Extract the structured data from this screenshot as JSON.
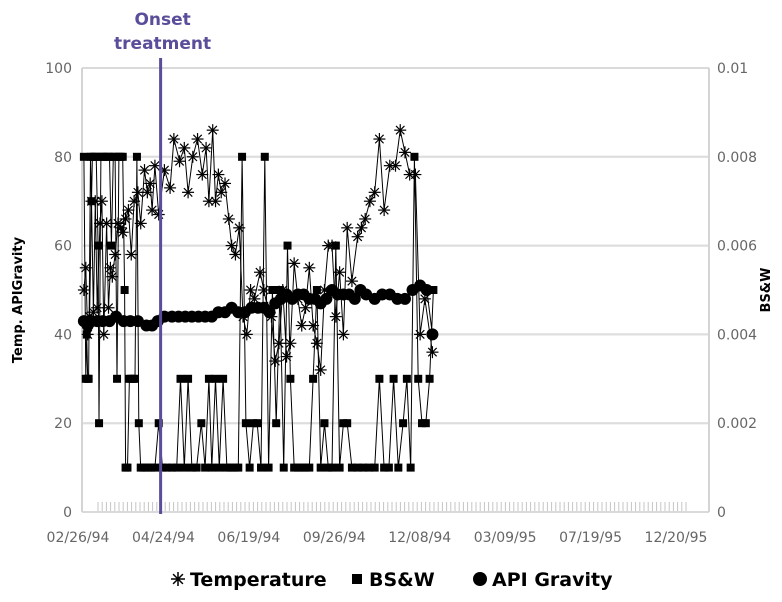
{
  "chart_data": {
    "type": "line",
    "title": "",
    "ylabel": "Temp. APIGravity",
    "y2label": "BS&W",
    "xlim": [
      "1994-02-26",
      "1995-12-20"
    ],
    "ylim": [
      0,
      100
    ],
    "y2lim": [
      0,
      0.01
    ],
    "yticks": [
      0,
      20,
      40,
      60,
      80,
      100
    ],
    "y2ticks": [
      "0",
      "0.002",
      "0.004",
      "0.006",
      "0.008",
      "0.01"
    ],
    "y2tick_values": [
      0,
      0.002,
      0.004,
      0.006,
      0.008,
      0.01
    ],
    "xticks": [
      "02/26/94",
      "04/24/94",
      "06/19/94",
      "09/26/94",
      "12/08/94",
      "03/09/95",
      "07/19/95",
      "12/20/95"
    ],
    "grid": true,
    "legend_position": "bottom",
    "annotation": {
      "text_line1": "Onset",
      "text_line2": "treatment",
      "x": "1994-05-20"
    },
    "series": [
      {
        "name": "Temperature",
        "axis": "left",
        "marker": "asterisk",
        "points": [
          [
            "1994-02-28",
            50
          ],
          [
            "1994-03-02",
            55
          ],
          [
            "1994-03-04",
            40
          ],
          [
            "1994-03-06",
            44
          ],
          [
            "1994-03-08",
            70
          ],
          [
            "1994-03-10",
            45
          ],
          [
            "1994-03-12",
            70
          ],
          [
            "1994-03-14",
            46
          ],
          [
            "1994-03-17",
            65
          ],
          [
            "1994-03-19",
            70
          ],
          [
            "1994-03-21",
            40
          ],
          [
            "1994-03-24",
            65
          ],
          [
            "1994-03-26",
            46
          ],
          [
            "1994-03-28",
            55
          ],
          [
            "1994-03-30",
            53
          ],
          [
            "1994-04-02",
            58
          ],
          [
            "1994-04-05",
            65
          ],
          [
            "1994-04-08",
            64
          ],
          [
            "1994-04-10",
            63
          ],
          [
            "1994-04-13",
            66
          ],
          [
            "1994-04-16",
            68
          ],
          [
            "1994-04-19",
            58
          ],
          [
            "1994-04-22",
            70
          ],
          [
            "1994-04-26",
            72
          ],
          [
            "1994-04-29",
            65
          ],
          [
            "1994-05-03",
            77
          ],
          [
            "1994-05-06",
            72
          ],
          [
            "1994-05-09",
            74
          ],
          [
            "1994-05-11",
            68
          ],
          [
            "1994-05-14",
            78
          ],
          [
            "1994-05-18",
            67
          ],
          [
            "1994-05-24",
            77
          ],
          [
            "1994-05-30",
            73
          ],
          [
            "1994-06-03",
            84
          ],
          [
            "1994-06-09",
            79
          ],
          [
            "1994-06-14",
            82
          ],
          [
            "1994-06-18",
            72
          ],
          [
            "1994-06-23",
            80
          ],
          [
            "1994-06-28",
            84
          ],
          [
            "1994-07-03",
            76
          ],
          [
            "1994-07-07",
            82
          ],
          [
            "1994-07-10",
            70
          ],
          [
            "1994-07-14",
            86
          ],
          [
            "1994-07-17",
            70
          ],
          [
            "1994-07-20",
            76
          ],
          [
            "1994-07-23",
            72
          ],
          [
            "1994-07-27",
            74
          ],
          [
            "1994-07-31",
            66
          ],
          [
            "1994-08-03",
            60
          ],
          [
            "1994-08-07",
            58
          ],
          [
            "1994-08-11",
            64
          ],
          [
            "1994-08-15",
            44
          ],
          [
            "1994-08-19",
            40
          ],
          [
            "1994-08-23",
            50
          ],
          [
            "1994-08-27",
            48
          ],
          [
            "1994-09-02",
            54
          ],
          [
            "1994-09-06",
            50
          ],
          [
            "1994-09-10",
            46
          ],
          [
            "1994-09-14",
            44
          ],
          [
            "1994-09-18",
            34
          ],
          [
            "1994-09-22",
            38
          ],
          [
            "1994-09-26",
            50
          ],
          [
            "1994-09-30",
            35
          ],
          [
            "1994-10-04",
            38
          ],
          [
            "1994-10-08",
            56
          ],
          [
            "1994-10-12",
            48
          ],
          [
            "1994-10-16",
            42
          ],
          [
            "1994-10-20",
            46
          ],
          [
            "1994-10-24",
            55
          ],
          [
            "1994-10-28",
            42
          ],
          [
            "1994-11-01",
            38
          ],
          [
            "1994-11-05",
            32
          ],
          [
            "1994-11-09",
            50
          ],
          [
            "1994-11-13",
            60
          ],
          [
            "1994-11-17",
            60
          ],
          [
            "1994-11-21",
            44
          ],
          [
            "1994-11-25",
            54
          ],
          [
            "1994-11-29",
            40
          ],
          [
            "1994-12-03",
            64
          ],
          [
            "1994-12-08",
            52
          ],
          [
            "1994-12-14",
            62
          ],
          [
            "1994-12-18",
            64
          ],
          [
            "1994-12-22",
            66
          ],
          [
            "1994-12-27",
            70
          ],
          [
            "1995-01-01",
            72
          ],
          [
            "1995-01-06",
            84
          ],
          [
            "1995-01-11",
            68
          ],
          [
            "1995-01-17",
            78
          ],
          [
            "1995-01-23",
            78
          ],
          [
            "1995-01-28",
            86
          ],
          [
            "1995-02-02",
            81
          ],
          [
            "1995-02-07",
            76
          ],
          [
            "1995-02-13",
            76
          ],
          [
            "1995-02-18",
            40
          ],
          [
            "1995-02-23",
            48
          ],
          [
            "1995-03-03",
            36
          ]
        ]
      },
      {
        "name": "BS&W",
        "axis": "right",
        "marker": "square",
        "points": [
          [
            "1994-02-28",
            0.008
          ],
          [
            "1994-03-02",
            0.003
          ],
          [
            "1994-03-03",
            0.004
          ],
          [
            "1994-03-04",
            0.003
          ],
          [
            "1994-03-05",
            0.003
          ],
          [
            "1994-03-07",
            0.008
          ],
          [
            "1994-03-08",
            0.007
          ],
          [
            "1994-03-09",
            0.008
          ],
          [
            "1994-03-11",
            0.008
          ],
          [
            "1994-03-13",
            0.008
          ],
          [
            "1994-03-15",
            0.006
          ],
          [
            "1994-03-16",
            0.002
          ],
          [
            "1994-03-18",
            0.008
          ],
          [
            "1994-03-20",
            0.008
          ],
          [
            "1994-03-22",
            0.008
          ],
          [
            "1994-03-25",
            0.008
          ],
          [
            "1994-03-27",
            0.008
          ],
          [
            "1994-03-29",
            0.006
          ],
          [
            "1994-03-31",
            0.008
          ],
          [
            "1994-04-02",
            0.008
          ],
          [
            "1994-04-04",
            0.003
          ],
          [
            "1994-04-06",
            0.008
          ],
          [
            "1994-04-08",
            0.008
          ],
          [
            "1994-04-10",
            0.008
          ],
          [
            "1994-04-12",
            0.005
          ],
          [
            "1994-04-13",
            0.001
          ],
          [
            "1994-04-15",
            0.001
          ],
          [
            "1994-04-17",
            0.003
          ],
          [
            "1994-04-19",
            0.003
          ],
          [
            "1994-04-21",
            0.003
          ],
          [
            "1994-04-23",
            0.003
          ],
          [
            "1994-04-25",
            0.008
          ],
          [
            "1994-04-27",
            0.002
          ],
          [
            "1994-04-29",
            0.001
          ],
          [
            "1994-05-02",
            0.001
          ],
          [
            "1994-05-06",
            0.001
          ],
          [
            "1994-05-10",
            0.001
          ],
          [
            "1994-05-14",
            0.001
          ],
          [
            "1994-05-18",
            0.002
          ],
          [
            "1994-05-22",
            0.001
          ],
          [
            "1994-05-27",
            0.001
          ],
          [
            "1994-06-01",
            0.001
          ],
          [
            "1994-06-06",
            0.001
          ],
          [
            "1994-06-10",
            0.003
          ],
          [
            "1994-06-14",
            0.001
          ],
          [
            "1994-06-18",
            0.003
          ],
          [
            "1994-06-22",
            0.001
          ],
          [
            "1994-06-27",
            0.001
          ],
          [
            "1994-07-02",
            0.002
          ],
          [
            "1994-07-06",
            0.001
          ],
          [
            "1994-07-10",
            0.003
          ],
          [
            "1994-07-13",
            0.001
          ],
          [
            "1994-07-17",
            0.003
          ],
          [
            "1994-07-21",
            0.001
          ],
          [
            "1994-07-25",
            0.003
          ],
          [
            "1994-07-29",
            0.001
          ],
          [
            "1994-08-02",
            0.001
          ],
          [
            "1994-08-06",
            0.001
          ],
          [
            "1994-08-10",
            0.001
          ],
          [
            "1994-08-14",
            0.008
          ],
          [
            "1994-08-18",
            0.002
          ],
          [
            "1994-08-22",
            0.001
          ],
          [
            "1994-08-26",
            0.002
          ],
          [
            "1994-08-30",
            0.002
          ],
          [
            "1994-09-03",
            0.001
          ],
          [
            "1994-09-07",
            0.008
          ],
          [
            "1994-09-11",
            0.001
          ],
          [
            "1994-09-15",
            0.005
          ],
          [
            "1994-09-19",
            0.002
          ],
          [
            "1994-09-23",
            0.005
          ],
          [
            "1994-09-27",
            0.001
          ],
          [
            "1994-10-01",
            0.006
          ],
          [
            "1994-10-04",
            0.003
          ],
          [
            "1994-10-08",
            0.001
          ],
          [
            "1994-10-12",
            0.001
          ],
          [
            "1994-10-16",
            0.001
          ],
          [
            "1994-10-20",
            0.001
          ],
          [
            "1994-10-24",
            0.001
          ],
          [
            "1994-10-28",
            0.003
          ],
          [
            "1994-11-01",
            0.005
          ],
          [
            "1994-11-05",
            0.001
          ],
          [
            "1994-11-09",
            0.002
          ],
          [
            "1994-11-13",
            0.001
          ],
          [
            "1994-11-17",
            0.001
          ],
          [
            "1994-11-21",
            0.006
          ],
          [
            "1994-11-25",
            0.001
          ],
          [
            "1994-11-29",
            0.002
          ],
          [
            "1994-12-03",
            0.002
          ],
          [
            "1994-12-08",
            0.001
          ],
          [
            "1994-12-14",
            0.001
          ],
          [
            "1994-12-20",
            0.001
          ],
          [
            "1994-12-26",
            0.001
          ],
          [
            "1995-01-01",
            0.001
          ],
          [
            "1995-01-06",
            0.003
          ],
          [
            "1995-01-11",
            0.001
          ],
          [
            "1995-01-16",
            0.001
          ],
          [
            "1995-01-21",
            0.003
          ],
          [
            "1995-01-26",
            0.001
          ],
          [
            "1995-01-31",
            0.002
          ],
          [
            "1995-02-04",
            0.003
          ],
          [
            "1995-02-08",
            0.001
          ],
          [
            "1995-02-12",
            0.008
          ],
          [
            "1995-02-16",
            0.003
          ],
          [
            "1995-02-20",
            0.002
          ],
          [
            "1995-02-24",
            0.002
          ],
          [
            "1995-02-28",
            0.003
          ],
          [
            "1995-03-04",
            0.005
          ]
        ]
      },
      {
        "name": "API Gravity",
        "axis": "left",
        "marker": "circle",
        "points": [
          [
            "1994-02-28",
            43
          ],
          [
            "1994-03-04",
            42
          ],
          [
            "1994-03-08",
            43
          ],
          [
            "1994-03-14",
            43
          ],
          [
            "1994-03-20",
            43
          ],
          [
            "1994-03-27",
            43
          ],
          [
            "1994-04-03",
            44
          ],
          [
            "1994-04-11",
            43
          ],
          [
            "1994-04-18",
            43
          ],
          [
            "1994-04-26",
            43
          ],
          [
            "1994-05-05",
            42
          ],
          [
            "1994-05-11",
            42
          ],
          [
            "1994-05-17",
            43
          ],
          [
            "1994-05-24",
            44
          ],
          [
            "1994-06-01",
            44
          ],
          [
            "1994-06-08",
            44
          ],
          [
            "1994-06-15",
            44
          ],
          [
            "1994-06-22",
            44
          ],
          [
            "1994-06-29",
            44
          ],
          [
            "1994-07-06",
            44
          ],
          [
            "1994-07-13",
            44
          ],
          [
            "1994-07-20",
            45
          ],
          [
            "1994-07-27",
            45
          ],
          [
            "1994-08-03",
            46
          ],
          [
            "1994-08-10",
            45
          ],
          [
            "1994-08-17",
            45
          ],
          [
            "1994-08-24",
            46
          ],
          [
            "1994-08-31",
            46
          ],
          [
            "1994-09-06",
            46
          ],
          [
            "1994-09-12",
            45
          ],
          [
            "1994-09-18",
            47
          ],
          [
            "1994-09-24",
            48
          ],
          [
            "1994-09-30",
            49
          ],
          [
            "1994-10-06",
            48
          ],
          [
            "1994-10-12",
            49
          ],
          [
            "1994-10-18",
            49
          ],
          [
            "1994-10-24",
            48
          ],
          [
            "1994-10-30",
            48
          ],
          [
            "1994-11-05",
            47
          ],
          [
            "1994-11-11",
            48
          ],
          [
            "1994-11-17",
            50
          ],
          [
            "1994-11-23",
            49
          ],
          [
            "1994-11-29",
            49
          ],
          [
            "1994-12-05",
            49
          ],
          [
            "1994-12-11",
            48
          ],
          [
            "1994-12-17",
            50
          ],
          [
            "1994-12-23",
            49
          ],
          [
            "1995-01-01",
            48
          ],
          [
            "1995-01-09",
            49
          ],
          [
            "1995-01-17",
            49
          ],
          [
            "1995-01-25",
            48
          ],
          [
            "1995-02-02",
            48
          ],
          [
            "1995-02-10",
            50
          ],
          [
            "1995-02-18",
            51
          ],
          [
            "1995-02-25",
            50
          ],
          [
            "1995-03-03",
            40
          ]
        ]
      }
    ]
  }
}
